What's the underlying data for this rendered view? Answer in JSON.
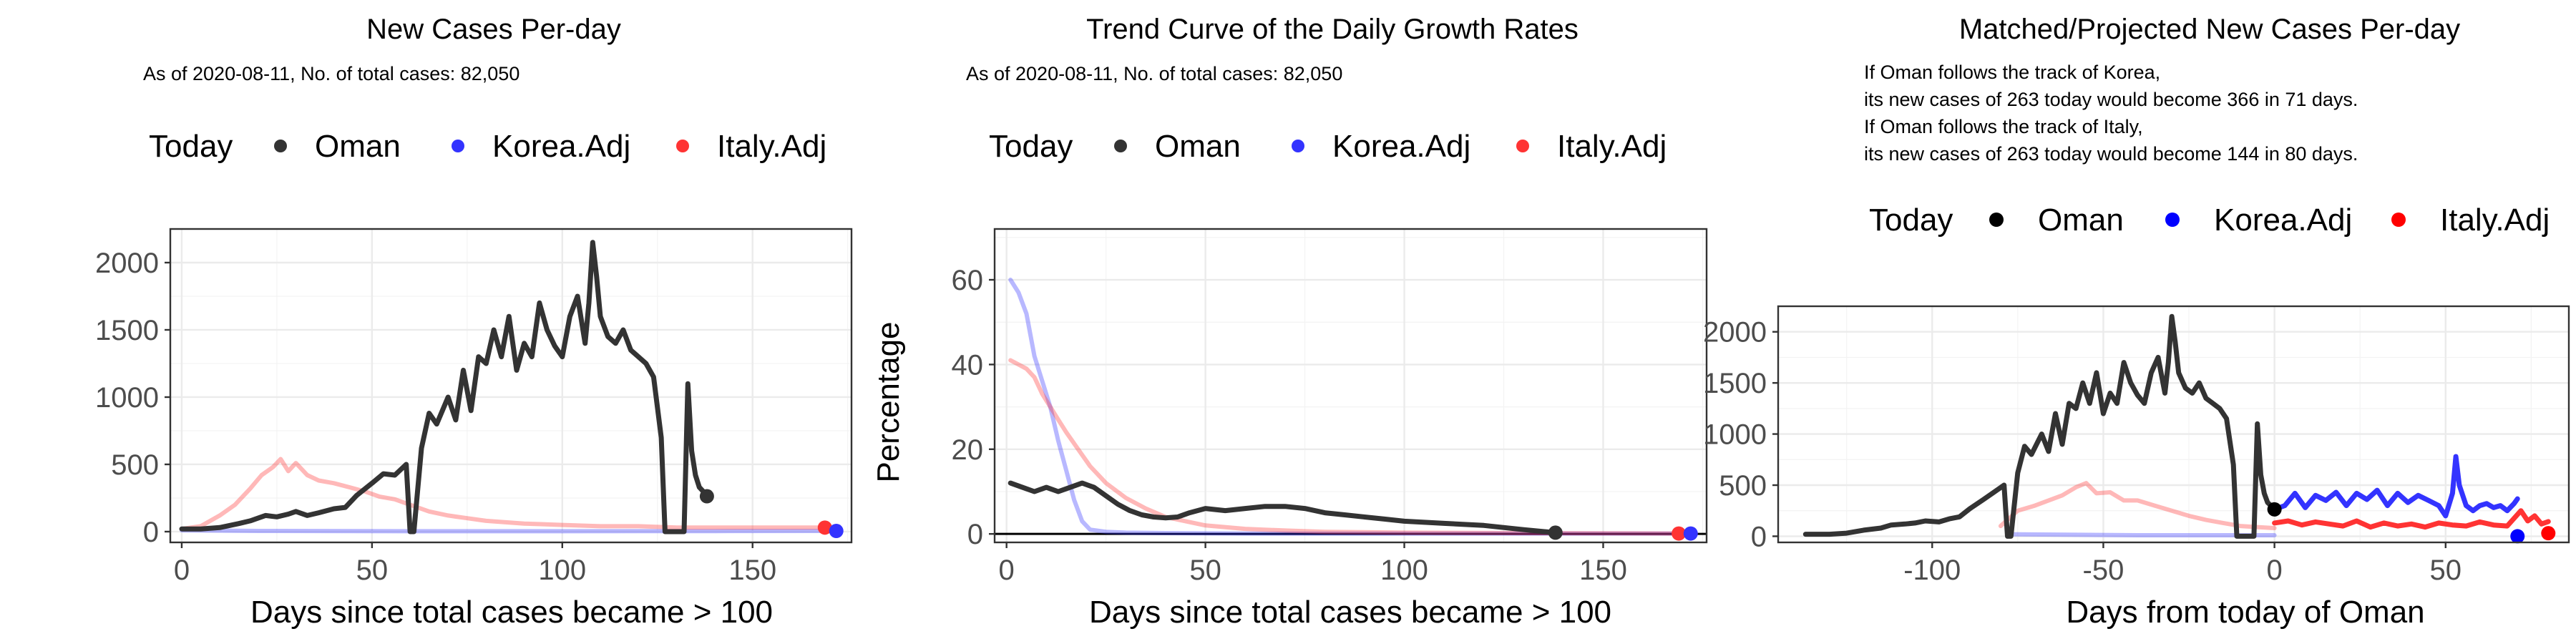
{
  "colors": {
    "oman": "#333333",
    "korea": "#3333ff",
    "italy": "#ff3333",
    "oman_dot": "#000000",
    "korea_dot": "#0000ff",
    "italy_dot": "#ff0000"
  },
  "legend": {
    "label": "Today",
    "items": [
      "Oman",
      "Korea.Adj",
      "Italy.Adj"
    ]
  },
  "panels": [
    {
      "title": "New Cases Per-day",
      "subtitle": [
        "As of 2020-08-11, No. of total cases: 82,050"
      ],
      "xlabel": "Days since total cases became > 100",
      "ylabel": ""
    },
    {
      "title": "Trend Curve of the Daily Growth Rates",
      "subtitle": [
        "As of 2020-08-11, No. of total cases: 82,050"
      ],
      "xlabel": "Days since total cases became > 100",
      "ylabel": "Percentage"
    },
    {
      "title": "Matched/Projected New Cases Per-day",
      "subtitle": [
        "If Oman follows the track of Korea,",
        "its new cases of 263 today would become 366 in 71 days.",
        "If Oman follows the track of Italy,",
        "its new cases of 263 today would become 144 in 80 days."
      ],
      "xlabel": "Days from today of Oman",
      "ylabel": ""
    }
  ],
  "chart_data": [
    {
      "type": "line",
      "title": "New Cases Per-day",
      "subtitle": "As of 2020-08-11, No. of total cases: 82,050",
      "xlabel": "Days since total cases became > 100",
      "ylabel": "",
      "xlim": [
        -3,
        176
      ],
      "ylim": [
        -80,
        2250
      ],
      "xticks": [
        0,
        50,
        100,
        150
      ],
      "yticks": [
        0,
        500,
        1000,
        1500,
        2000
      ],
      "grid": true,
      "legend_position": "top",
      "series": [
        {
          "name": "Korea.Adj",
          "role": "faded",
          "x": [
            0,
            20,
            60,
            100,
            140,
            172
          ],
          "y": [
            10,
            5,
            3,
            3,
            4,
            5
          ]
        },
        {
          "name": "Italy.Adj",
          "role": "faded",
          "x": [
            0,
            5,
            10,
            14,
            18,
            21,
            24,
            26,
            28,
            30,
            33,
            36,
            40,
            44,
            48,
            52,
            56,
            60,
            65,
            70,
            75,
            80,
            90,
            100,
            110,
            120,
            130,
            140,
            150,
            160,
            170
          ],
          "y": [
            20,
            40,
            120,
            200,
            320,
            420,
            480,
            540,
            450,
            510,
            420,
            380,
            360,
            330,
            300,
            260,
            240,
            200,
            150,
            120,
            100,
            80,
            60,
            50,
            40,
            40,
            30,
            30,
            30,
            30,
            30
          ]
        },
        {
          "name": "Oman",
          "role": "main",
          "x": [
            0,
            5,
            10,
            15,
            18,
            20,
            22,
            25,
            28,
            30,
            33,
            36,
            40,
            43,
            46,
            50,
            53,
            56,
            59,
            60,
            61,
            63,
            65,
            67,
            70,
            72,
            74,
            76,
            78,
            80,
            82,
            84,
            86,
            88,
            90,
            92,
            94,
            96,
            98,
            100,
            102,
            104,
            106,
            107,
            108,
            109,
            110,
            112,
            114,
            116,
            118,
            120,
            122,
            124,
            126,
            127,
            128,
            130,
            132,
            133,
            134,
            135,
            136,
            137,
            138
          ],
          "y": [
            20,
            20,
            30,
            60,
            80,
            100,
            120,
            110,
            130,
            150,
            120,
            140,
            170,
            180,
            270,
            360,
            430,
            420,
            500,
            0,
            0,
            620,
            880,
            800,
            1000,
            830,
            1200,
            900,
            1300,
            1250,
            1500,
            1300,
            1600,
            1200,
            1400,
            1300,
            1700,
            1500,
            1380,
            1300,
            1600,
            1750,
            1400,
            1700,
            2150,
            1900,
            1600,
            1450,
            1400,
            1500,
            1350,
            1300,
            1250,
            1150,
            700,
            0,
            0,
            0,
            0,
            1100,
            600,
            420,
            330,
            300,
            263
          ]
        }
      ],
      "today_points": [
        {
          "name": "Oman",
          "x": 138,
          "y": 263
        },
        {
          "name": "Italy.Adj",
          "x": 169,
          "y": 30
        },
        {
          "name": "Korea.Adj",
          "x": 172,
          "y": 5
        }
      ]
    },
    {
      "type": "line",
      "title": "Trend Curve of the Daily Growth Rates",
      "subtitle": "As of 2020-08-11, No. of total cases: 82,050",
      "xlabel": "Days since total cases became > 100",
      "ylabel": "Percentage",
      "xlim": [
        -3,
        176
      ],
      "ylim": [
        -2,
        72
      ],
      "xticks": [
        0,
        50,
        100,
        150
      ],
      "yticks": [
        0,
        20,
        40,
        60
      ],
      "grid": true,
      "legend_position": "top",
      "series": [
        {
          "name": "Korea.Adj",
          "role": "faded",
          "x": [
            1,
            3,
            5,
            7,
            9,
            11,
            13,
            15,
            17,
            19,
            21,
            25,
            30,
            40,
            60,
            100,
            150,
            172
          ],
          "y": [
            60,
            57,
            52,
            42,
            36,
            30,
            22,
            15,
            8,
            3,
            1,
            0.5,
            0.3,
            0.2,
            0.1,
            0.1,
            0.1,
            0.1
          ]
        },
        {
          "name": "Italy.Adj",
          "role": "faded",
          "x": [
            1,
            3,
            5,
            7,
            9,
            11,
            13,
            15,
            18,
            21,
            25,
            30,
            35,
            40,
            45,
            50,
            60,
            70,
            80,
            100,
            130,
            169
          ],
          "y": [
            41,
            40,
            39,
            37,
            33,
            30,
            27,
            24,
            20,
            16,
            12,
            8.5,
            6,
            4,
            3,
            2,
            1.2,
            0.8,
            0.5,
            0.3,
            0.2,
            0.1
          ]
        },
        {
          "name": "Oman",
          "role": "main",
          "x": [
            1,
            4,
            7,
            10,
            13,
            16,
            19,
            22,
            25,
            28,
            31,
            34,
            37,
            40,
            43,
            46,
            50,
            55,
            60,
            65,
            70,
            75,
            80,
            85,
            90,
            95,
            100,
            110,
            120,
            130,
            138
          ],
          "y": [
            12,
            11,
            10,
            11,
            10,
            11,
            12,
            11,
            9,
            7,
            5.5,
            4.5,
            4,
            3.8,
            4,
            5,
            6,
            5.5,
            6,
            6.5,
            6.5,
            6,
            5,
            4.5,
            4,
            3.5,
            3,
            2.5,
            2,
            1,
            0.3
          ]
        }
      ],
      "today_points": [
        {
          "name": "Oman",
          "x": 138,
          "y": 0.3
        },
        {
          "name": "Italy.Adj",
          "x": 169,
          "y": 0.1
        },
        {
          "name": "Korea.Adj",
          "x": 172,
          "y": 0.1
        }
      ]
    },
    {
      "type": "line",
      "title": "Matched/Projected New Cases Per-day",
      "subtitle": "If Oman follows the track of Korea, its new cases of 263 today would become 366 in 71 days. If Oman follows the track of Italy, its new cases of 263 today would become 144 in 80 days.",
      "xlabel": "Days from today of Oman",
      "ylabel": "",
      "xlim": [
        -145,
        86
      ],
      "ylim": [
        -60,
        2250
      ],
      "xticks": [
        -100,
        -50,
        0,
        50
      ],
      "yticks": [
        0,
        500,
        1000,
        1500,
        2000
      ],
      "grid": true,
      "legend_position": "top",
      "series": [
        {
          "name": "Korea.Adj",
          "role": "faded",
          "x": [
            -78,
            -40,
            -10,
            0
          ],
          "y": [
            20,
            10,
            10,
            10
          ]
        },
        {
          "name": "Italy.Adj",
          "role": "faded",
          "x": [
            -80,
            -75,
            -70,
            -66,
            -62,
            -58,
            -55,
            -52,
            -48,
            -44,
            -40,
            -35,
            -30,
            -25,
            -20,
            -15,
            -10,
            -5,
            0
          ],
          "y": [
            100,
            250,
            300,
            350,
            400,
            480,
            520,
            420,
            430,
            350,
            350,
            300,
            250,
            200,
            160,
            130,
            100,
            90,
            80
          ]
        },
        {
          "name": "Oman",
          "role": "main",
          "x": [
            -137,
            -130,
            -125,
            -120,
            -115,
            -112,
            -108,
            -105,
            -102,
            -98,
            -95,
            -92,
            -89,
            -85,
            -82,
            -79,
            -78,
            -77,
            -75,
            -73,
            -71,
            -68,
            -66,
            -64,
            -62,
            -60,
            -58,
            -56,
            -54,
            -52,
            -50,
            -48,
            -46,
            -44,
            -42,
            -40,
            -38,
            -36,
            -34,
            -32,
            -31,
            -30,
            -29,
            -28,
            -26,
            -24,
            -22,
            -20,
            -18,
            -16,
            -14,
            -12,
            -11,
            -10,
            -8,
            -6,
            -5,
            -4,
            -3,
            -2,
            -1,
            0
          ],
          "y": [
            20,
            20,
            30,
            60,
            80,
            110,
            120,
            130,
            150,
            140,
            170,
            190,
            270,
            360,
            430,
            500,
            0,
            0,
            620,
            880,
            800,
            1000,
            830,
            1200,
            900,
            1300,
            1250,
            1500,
            1300,
            1600,
            1200,
            1400,
            1300,
            1700,
            1500,
            1380,
            1300,
            1600,
            1750,
            1400,
            1700,
            2150,
            1900,
            1600,
            1450,
            1400,
            1500,
            1350,
            1300,
            1250,
            1150,
            700,
            0,
            0,
            0,
            0,
            1100,
            600,
            420,
            330,
            300,
            263
          ]
        },
        {
          "name": "Korea.Adj",
          "role": "projected",
          "x": [
            0,
            3,
            6,
            9,
            12,
            15,
            18,
            21,
            24,
            27,
            30,
            33,
            36,
            39,
            42,
            45,
            48,
            50,
            52,
            53,
            54,
            56,
            58,
            60,
            62,
            64,
            66,
            68,
            70,
            71
          ],
          "y": [
            263,
            300,
            420,
            280,
            400,
            350,
            430,
            300,
            420,
            360,
            450,
            300,
            420,
            330,
            400,
            350,
            300,
            200,
            420,
            780,
            500,
            300,
            250,
            300,
            320,
            280,
            300,
            250,
            320,
            366
          ]
        },
        {
          "name": "Italy.Adj",
          "role": "projected",
          "x": [
            0,
            4,
            8,
            12,
            16,
            20,
            24,
            28,
            32,
            36,
            40,
            44,
            48,
            52,
            56,
            60,
            64,
            68,
            72,
            74,
            76,
            78,
            80
          ],
          "y": [
            130,
            150,
            110,
            140,
            120,
            100,
            150,
            90,
            130,
            100,
            120,
            90,
            130,
            110,
            100,
            140,
            110,
            100,
            250,
            150,
            200,
            120,
            144
          ]
        }
      ],
      "today_points": [
        {
          "name": "Oman",
          "x": 0,
          "y": 263
        },
        {
          "name": "Korea.Adj",
          "x": 71,
          "y": 0
        },
        {
          "name": "Italy.Adj",
          "x": 80,
          "y": 30
        }
      ]
    }
  ]
}
